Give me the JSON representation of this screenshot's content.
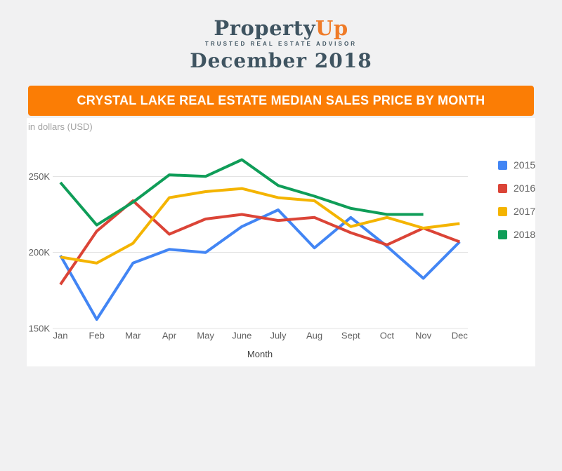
{
  "page": {
    "background": "#f1f1f2"
  },
  "logo": {
    "brand_primary": "Property",
    "brand_accent": "Up",
    "accent_color": "#ef7b28",
    "slate_color": "#3f5461",
    "tagline": "TRUSTED REAL ESTATE ADVISOR",
    "period": "December 2018"
  },
  "banner": {
    "title": "CRYSTAL LAKE REAL ESTATE MEDIAN SALES PRICE BY MONTH",
    "background": "#fb7d05",
    "text_color": "#ffffff"
  },
  "chart": {
    "units_label": "in dollars (USD)"
  },
  "chart_data": {
    "type": "line",
    "title": "Crystal Lake Real Estate Median Sales Price by Month",
    "units": "USD",
    "values_unit": "thousands of USD",
    "categories": [
      "Jan",
      "Feb",
      "Mar",
      "Apr",
      "May",
      "June",
      "July",
      "Aug",
      "Sept",
      "Oct",
      "Nov",
      "Dec"
    ],
    "xlabel": "Month",
    "y_ticks": [
      {
        "label": "150K",
        "value": 150
      },
      {
        "label": "200K",
        "value": 200
      },
      {
        "label": "250K",
        "value": 250
      }
    ],
    "ylim": [
      150,
      272
    ],
    "grid": true,
    "legend_position": "right",
    "gridline_color": "#e3e3e3",
    "axis_text_color": "#616161",
    "series": [
      {
        "name": "2015",
        "color": "#4285f4",
        "values": [
          198,
          156,
          193,
          202,
          200,
          217,
          228,
          203,
          223,
          204,
          183,
          207
        ]
      },
      {
        "name": "2016",
        "color": "#db4437",
        "values": [
          179,
          214,
          234,
          212,
          222,
          225,
          221,
          223,
          213,
          205,
          216,
          207
        ]
      },
      {
        "name": "2017",
        "color": "#f4b400",
        "values": [
          197,
          193,
          206,
          236,
          240,
          242,
          236,
          234,
          217,
          223,
          216,
          219
        ]
      },
      {
        "name": "2018",
        "color": "#0f9d58",
        "values": [
          246,
          218,
          233,
          251,
          250,
          261,
          244,
          237,
          229,
          225,
          225,
          null
        ]
      }
    ]
  }
}
